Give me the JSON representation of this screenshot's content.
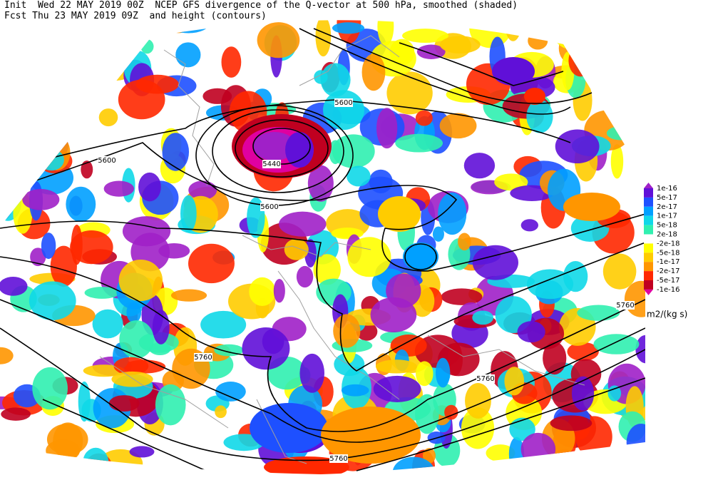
{
  "header": {
    "line1": "Init  Wed 22 MAY 2019 00Z  NCEP GFS divergence of the Q-vector at 500 hPa, smoothed (shaded)",
    "line2": "Fcst Thu 23 MAY 2019 09Z  and height (contours)"
  },
  "contour_labels": [
    "5600",
    "5600",
    "5440",
    "5600",
    "5760",
    "5760",
    "5760",
    "5760"
  ],
  "legend": {
    "labels": [
      "1e-16",
      "5e-17",
      "2e-17",
      "1e-17",
      "5e-18",
      "2e-18",
      "-2e-18",
      "-5e-18",
      "-1e-17",
      "-2e-17",
      "-5e-17",
      "-1e-16"
    ],
    "colors": [
      "#a020c8",
      "#6010d8",
      "#1e50ff",
      "#00a0ff",
      "#10d8e8",
      "#30f0b0",
      "#ffffff",
      "#ffff00",
      "#ffcc00",
      "#ff9600",
      "#ff2800",
      "#c00020",
      "#e000a0"
    ],
    "units": "m2/(kg s)"
  }
}
